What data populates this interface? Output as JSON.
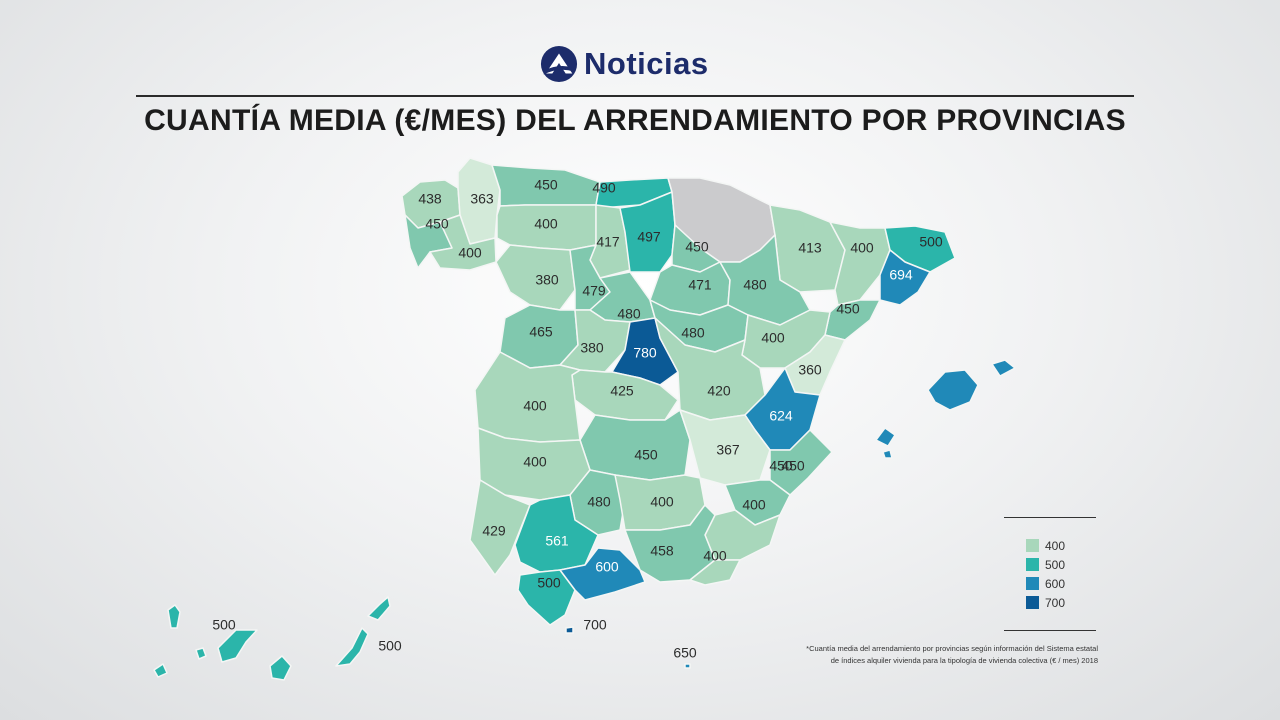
{
  "header": {
    "brand": "Noticias",
    "title": "CUANTÍA MEDIA (€/MES) DEL ARRENDAMIENTO POR PROVINCIAS"
  },
  "colors": {
    "c300": "#d3ead9",
    "c400": "#a8d7bb",
    "c450": "#80c8ae",
    "c500": "#2bb5aa",
    "c600": "#2089b8",
    "c700": "#0b5a96",
    "nodata": "#cbcbcd",
    "brand": "#1d2c6b"
  },
  "provinces": [
    {
      "label": "438",
      "value": 438
    },
    {
      "label": "363",
      "value": 363
    },
    {
      "label": "450",
      "value": 450
    },
    {
      "label": "400",
      "value": 400
    },
    {
      "label": "450",
      "value": 450
    },
    {
      "label": "490",
      "value": 490
    },
    {
      "label": "400",
      "value": 400
    },
    {
      "label": "417",
      "value": 417
    },
    {
      "label": "497",
      "value": 497
    },
    {
      "label": "450",
      "value": 450
    },
    {
      "label": "413",
      "value": 413
    },
    {
      "label": "400",
      "value": 400
    },
    {
      "label": "500",
      "value": 500
    },
    {
      "label": "380",
      "value": 380
    },
    {
      "label": "479",
      "value": 479
    },
    {
      "label": "471",
      "value": 471
    },
    {
      "label": "480",
      "value": 480
    },
    {
      "label": "694",
      "value": 694
    },
    {
      "label": "480",
      "value": 480
    },
    {
      "label": "480",
      "value": 480
    },
    {
      "label": "465",
      "value": 465
    },
    {
      "label": "450",
      "value": 450
    },
    {
      "label": "380",
      "value": 380
    },
    {
      "label": "780",
      "value": 780
    },
    {
      "label": "400",
      "value": 400
    },
    {
      "label": "360",
      "value": 360
    },
    {
      "label": "425",
      "value": 425
    },
    {
      "label": "420",
      "value": 420
    },
    {
      "label": "400",
      "value": 400
    },
    {
      "label": "624",
      "value": 624
    },
    {
      "label": "450",
      "value": 450
    },
    {
      "label": "367",
      "value": 367
    },
    {
      "label": "400",
      "value": 400
    },
    {
      "label": "450",
      "value": 450
    },
    {
      "label": "450",
      "value": 450
    },
    {
      "label": "480",
      "value": 480
    },
    {
      "label": "400",
      "value": 400
    },
    {
      "label": "400",
      "value": 400
    },
    {
      "label": "429",
      "value": 429
    },
    {
      "label": "561",
      "value": 561
    },
    {
      "label": "458",
      "value": 458
    },
    {
      "label": "400",
      "value": 400
    },
    {
      "label": "500",
      "value": 500
    },
    {
      "label": "600",
      "value": 600
    },
    {
      "label": "700",
      "value": 700
    },
    {
      "label": "500",
      "value": 500
    },
    {
      "label": "500",
      "value": 500
    },
    {
      "label": "650",
      "value": 650
    }
  ],
  "legend": [
    {
      "label": "400",
      "color": "#a8d7bb"
    },
    {
      "label": "500",
      "color": "#2bb5aa"
    },
    {
      "label": "600",
      "color": "#2089b8"
    },
    {
      "label": "700",
      "color": "#0b5a96"
    }
  ],
  "footnote": {
    "line1": "*Cuantía media del arrendamiento por provincias según información del Sistema estatal",
    "line2": "de índices alquiler vivienda para la tipología de vivienda colectiva (€ / mes) 2018"
  }
}
